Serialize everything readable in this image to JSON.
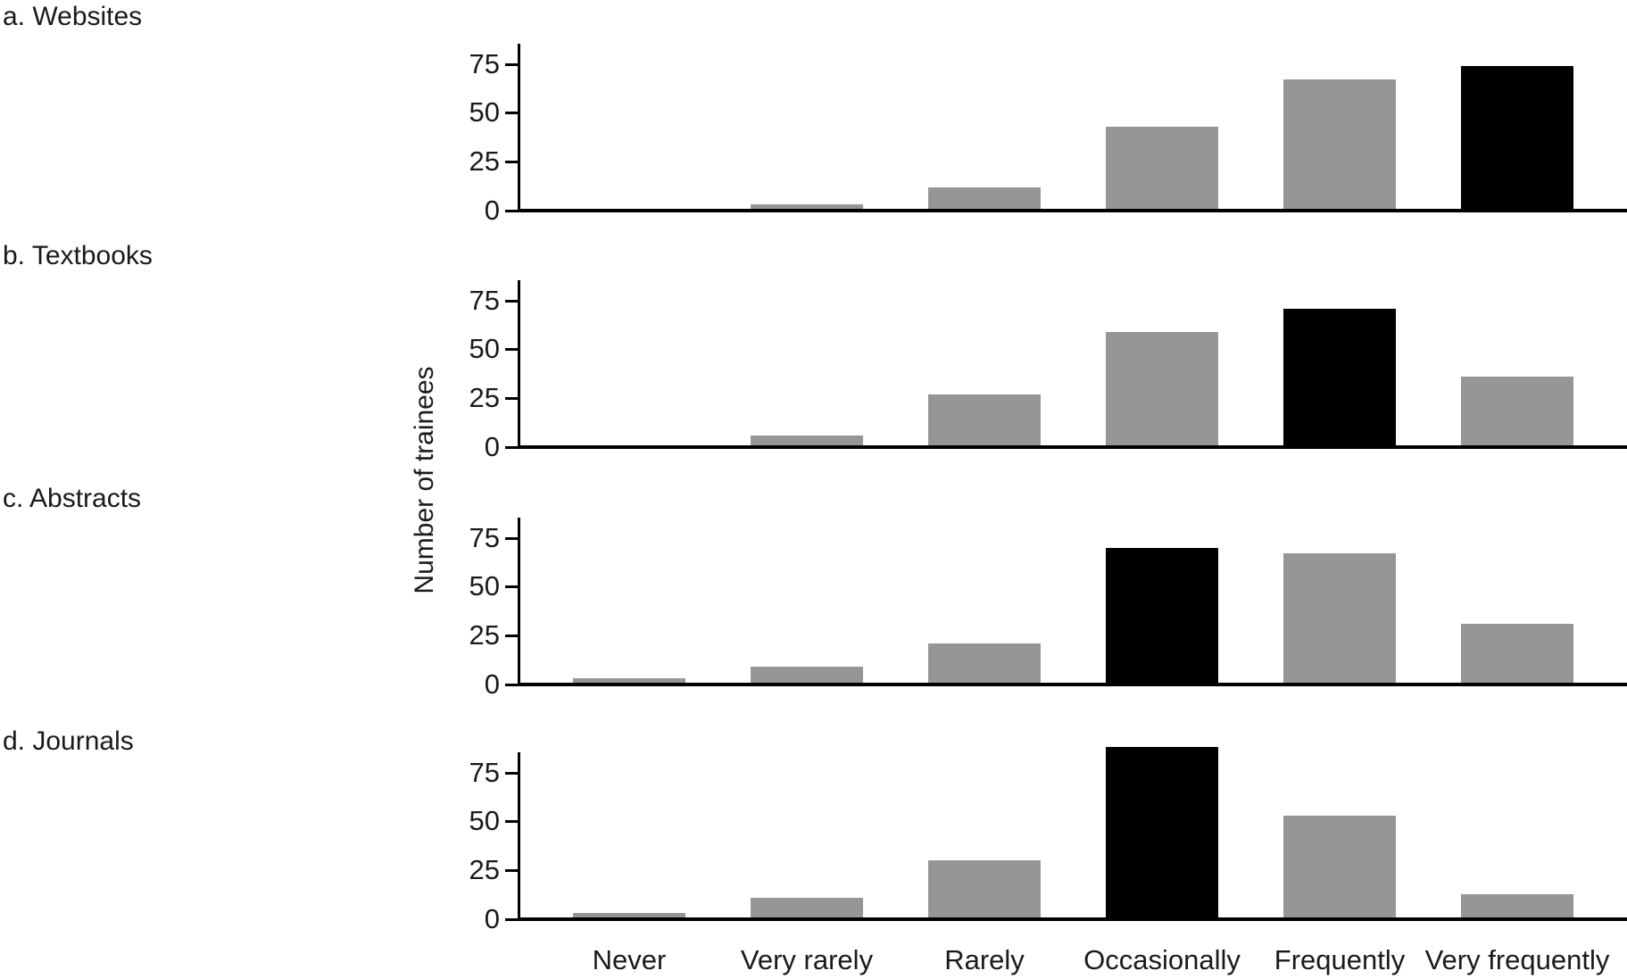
{
  "figure": {
    "y_axis_label": "Number of trainees",
    "bar_color": "#969696",
    "highlight_color": "#000000",
    "axis_color": "#000000",
    "background": "#ffffff"
  },
  "chart_data": [
    {
      "type": "bar",
      "title": "a. Websites",
      "categories": [
        "Never",
        "Very rarely",
        "Rarely",
        "Occasionally",
        "Frequently",
        "Very frequently"
      ],
      "values": [
        1,
        3,
        12,
        43,
        67,
        74
      ],
      "highlight_index": 5,
      "highlight_category": "Very frequently",
      "ylabel": "Number of trainees",
      "yticks": [
        0,
        25,
        50,
        75
      ],
      "ylim": [
        0,
        85
      ],
      "grid": false,
      "legend": false
    },
    {
      "type": "bar",
      "title": "b. Textbooks",
      "categories": [
        "Never",
        "Very rarely",
        "Rarely",
        "Occasionally",
        "Frequently",
        "Very frequently"
      ],
      "values": [
        1,
        6,
        27,
        59,
        71,
        36
      ],
      "highlight_index": 4,
      "highlight_category": "Frequently",
      "ylabel": "Number of trainees",
      "yticks": [
        0,
        25,
        50,
        75
      ],
      "ylim": [
        0,
        85
      ],
      "grid": false,
      "legend": false
    },
    {
      "type": "bar",
      "title": "c. Abstracts",
      "categories": [
        "Never",
        "Very rarely",
        "Rarely",
        "Occasionally",
        "Frequently",
        "Very frequently"
      ],
      "values": [
        3,
        9,
        21,
        70,
        67,
        31
      ],
      "highlight_index": 3,
      "highlight_category": "Occasionally",
      "ylabel": "Number of trainees",
      "yticks": [
        0,
        25,
        50,
        75
      ],
      "ylim": [
        0,
        85
      ],
      "grid": false,
      "legend": false
    },
    {
      "type": "bar",
      "title": "d. Journals",
      "categories": [
        "Never",
        "Very rarely",
        "Rarely",
        "Occasionally",
        "Frequently",
        "Very frequently"
      ],
      "values": [
        3,
        11,
        30,
        88,
        53,
        13
      ],
      "highlight_index": 3,
      "highlight_category": "Occasionally",
      "ylabel": "Number of trainees",
      "yticks": [
        0,
        25,
        50,
        75
      ],
      "ylim": [
        0,
        85
      ],
      "grid": false,
      "legend": false
    }
  ]
}
